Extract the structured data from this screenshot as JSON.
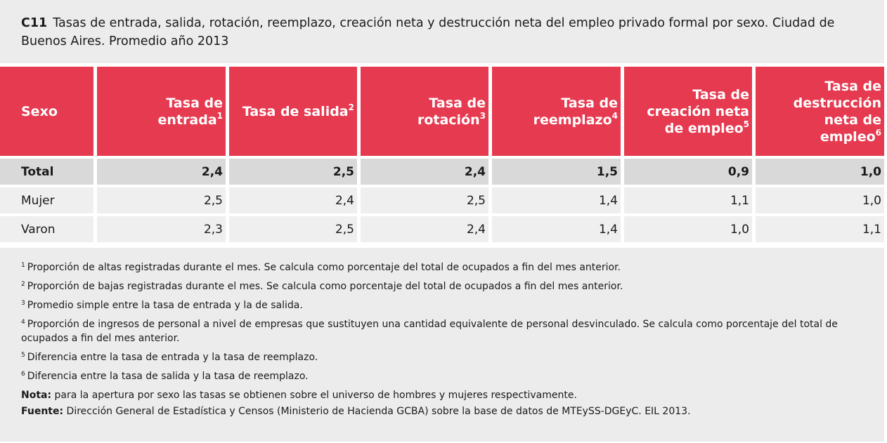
{
  "header": {
    "code": "C11",
    "title": "Tasas de entrada, salida, rotación, reemplazo, creación neta y destrucción neta del empleo privado formal por sexo. Ciudad de Buenos Aires. Promedio año 2013"
  },
  "table": {
    "columns": [
      {
        "label": "Sexo"
      },
      {
        "label": "Tasa de entrada",
        "note": "1"
      },
      {
        "label": "Tasa de salida",
        "note": "2"
      },
      {
        "label": "Tasa de rotación",
        "note": "3"
      },
      {
        "label": "Tasa de reemplazo",
        "note": "4"
      },
      {
        "label": "Tasa de creación neta de empleo",
        "note": "5"
      },
      {
        "label": "Tasa de destrucción neta de empleo",
        "note": "6"
      }
    ],
    "rows": [
      [
        "Total",
        "2,4",
        "2,5",
        "2,4",
        "1,5",
        "0,9",
        "1,0"
      ],
      [
        "Mujer",
        "2,5",
        "2,4",
        "2,5",
        "1,4",
        "1,1",
        "1,0"
      ],
      [
        "Varon",
        "2,3",
        "2,5",
        "2,4",
        "1,4",
        "1,0",
        "1,1"
      ]
    ]
  },
  "notes": [
    {
      "marker": "1",
      "text": "Proporción de altas registradas durante el mes. Se calcula como porcentaje del total de ocupados a fin del mes anterior."
    },
    {
      "marker": "2",
      "text": "Proporción de bajas registradas durante el mes. Se calcula como porcentaje del total de ocupados a fin del mes anterior."
    },
    {
      "marker": "3",
      "text": "Promedio simple entre la tasa de entrada y la de salida."
    },
    {
      "marker": "4",
      "text": "Proporción de ingresos de personal a nivel de empresas que sustituyen una cantidad equivalente de personal desvinculado. Se calcula como porcentaje del total de ocupados a fin del mes anterior."
    },
    {
      "marker": "5",
      "text": "Diferencia entre la tasa de entrada y la tasa de reemplazo."
    },
    {
      "marker": "6",
      "text": "Diferencia entre la tasa de salida y la tasa de reemplazo."
    }
  ],
  "nota": {
    "label": "Nota:",
    "text": "para la apertura por sexo las tasas se obtienen sobre el universo de hombres y mujeres respectivamente."
  },
  "fuente": {
    "label": "Fuente:",
    "text": "Dirección General de Estadística y Censos (Ministerio de Hacienda GCBA) sobre la base de datos de MTEySS-DGEyC. EIL 2013."
  }
}
